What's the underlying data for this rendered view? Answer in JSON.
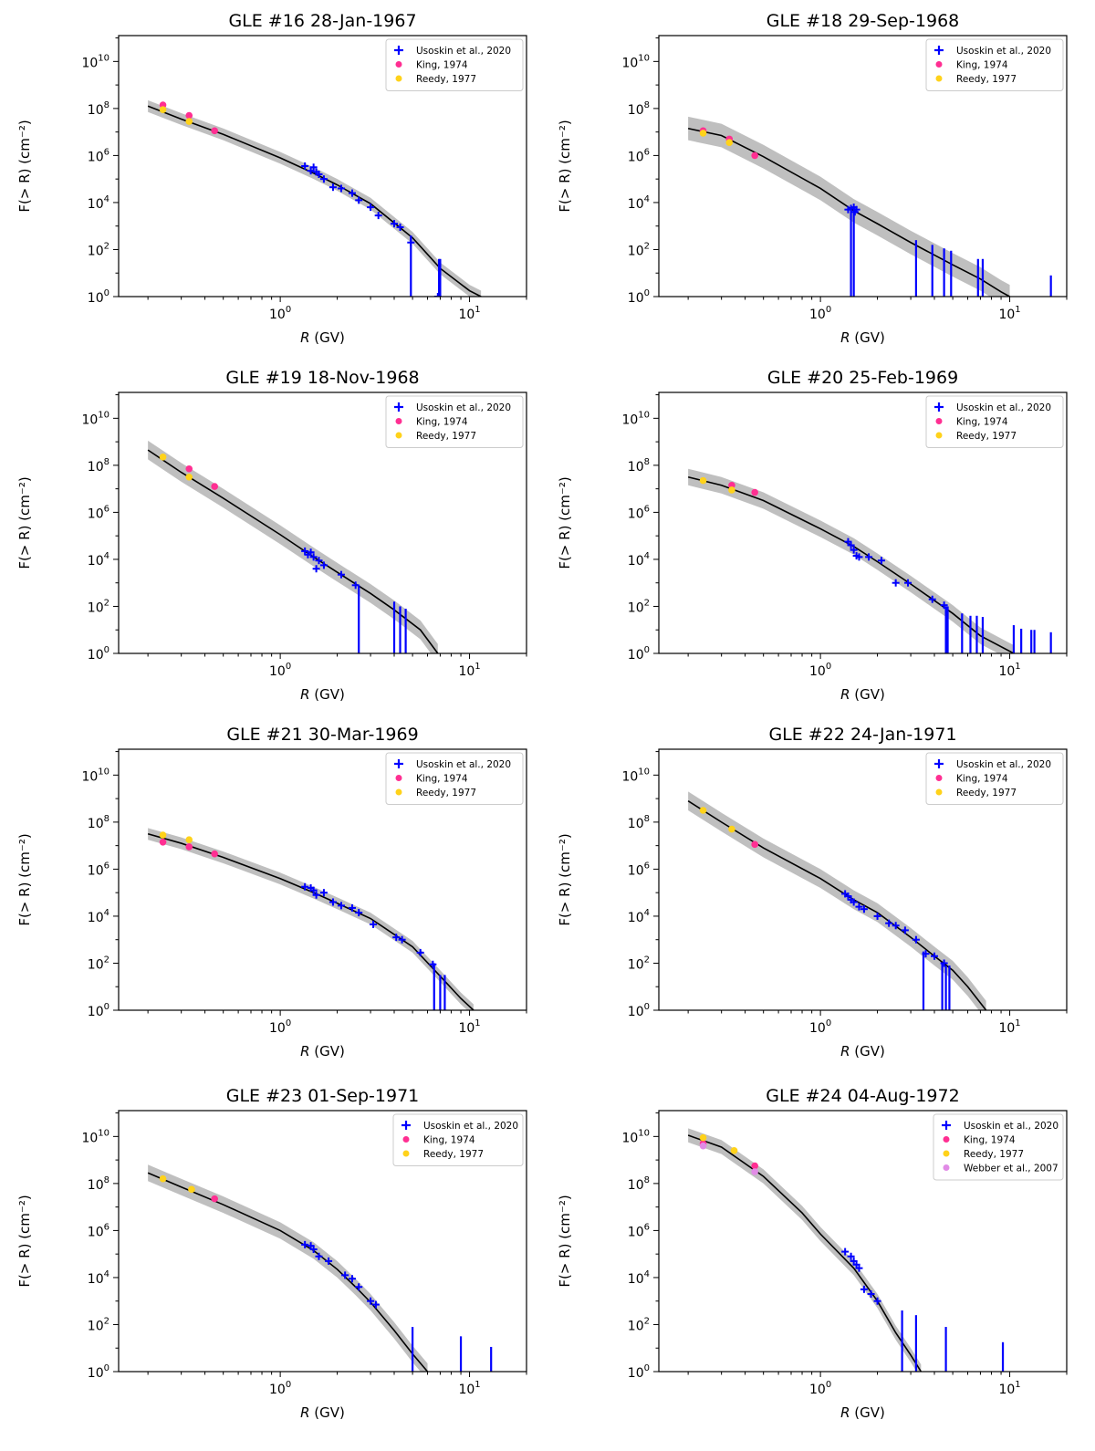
{
  "figure": {
    "xlabel_var": "R",
    "xlabel_unit": "(GV)",
    "ylabel": "F(> R) (cm⁻²)",
    "x_ticks": [
      "10^0",
      "10^1"
    ],
    "y_ticks": [
      "10^0",
      "10^2",
      "10^4",
      "10^6",
      "10^8",
      "10^10"
    ],
    "legend_entries": [
      "Usoskin et al., 2020",
      "King, 1974",
      "Reedy, 1977",
      "Webber et al., 2007"
    ],
    "colors": {
      "usoskin": "#0000ff",
      "king": "#ff2f92",
      "reedy": "#ffd21a",
      "webber": "#e18be6",
      "fit": "#000000",
      "band": "#bfbfbf"
    }
  },
  "chart_data": [
    {
      "type": "scatter",
      "title": "GLE #16   28-Jan-1967",
      "xscale": "log",
      "yscale": "log",
      "xlim": [
        0.14,
        20
      ],
      "ylim_log10": [
        0,
        11.1
      ],
      "fit_log10": [
        [
          0.2,
          8.1
        ],
        [
          0.3,
          7.55
        ],
        [
          0.5,
          6.9
        ],
        [
          1.0,
          5.9
        ],
        [
          1.5,
          5.25
        ],
        [
          2.0,
          4.75
        ],
        [
          3.0,
          3.95
        ],
        [
          5.0,
          2.5
        ],
        [
          7.0,
          1.2
        ],
        [
          10.0,
          0.25
        ],
        [
          11.5,
          0.0
        ]
      ],
      "band_halfwidth_log10": 0.25,
      "king": [
        [
          0.24,
          8.15
        ],
        [
          0.33,
          7.7
        ],
        [
          0.45,
          7.05
        ]
      ],
      "reedy": [
        [
          0.24,
          7.95
        ],
        [
          0.33,
          7.45
        ]
      ],
      "usoskin": [
        [
          1.35,
          5.55
        ],
        [
          1.45,
          5.35
        ],
        [
          1.5,
          5.5
        ],
        [
          1.55,
          5.3
        ],
        [
          1.6,
          5.2
        ],
        [
          1.7,
          5.0
        ],
        [
          1.9,
          4.65
        ],
        [
          2.1,
          4.6
        ],
        [
          2.4,
          4.4
        ],
        [
          2.6,
          4.1
        ],
        [
          3.0,
          3.8
        ],
        [
          3.3,
          3.45
        ],
        [
          4.0,
          3.1
        ],
        [
          4.3,
          2.95
        ],
        [
          4.9,
          2.3
        ],
        [
          6.8,
          0.0
        ]
      ],
      "usoskin_errbar_log10": [
        [
          6.9,
          1.6
        ],
        [
          7.0,
          1.6
        ],
        [
          4.9,
          2.6
        ]
      ],
      "legend": [
        "Usoskin et al., 2020",
        "King, 1974",
        "Reedy, 1977"
      ]
    },
    {
      "type": "scatter",
      "title": "GLE #18   29-Sep-1968",
      "xscale": "log",
      "yscale": "log",
      "xlim": [
        0.14,
        20
      ],
      "ylim_log10": [
        0,
        11.1
      ],
      "fit_log10": [
        [
          0.2,
          7.15
        ],
        [
          0.3,
          6.85
        ],
        [
          0.5,
          5.95
        ],
        [
          1.0,
          4.6
        ],
        [
          1.5,
          3.65
        ],
        [
          2.0,
          3.1
        ],
        [
          3.0,
          2.3
        ],
        [
          5.0,
          1.35
        ],
        [
          7.0,
          0.75
        ],
        [
          9.0,
          0.2
        ],
        [
          10.0,
          0.0
        ]
      ],
      "band_halfwidth_log10": 0.5,
      "king": [
        [
          0.24,
          7.05
        ],
        [
          0.33,
          6.7
        ],
        [
          0.45,
          6.0
        ]
      ],
      "reedy": [
        [
          0.24,
          6.95
        ],
        [
          0.33,
          6.55
        ]
      ],
      "usoskin": [
        [
          1.4,
          3.7
        ],
        [
          1.45,
          3.75
        ],
        [
          1.5,
          3.8
        ],
        [
          1.52,
          3.6
        ],
        [
          1.55,
          3.7
        ]
      ],
      "usoskin_errbar_log10": [
        [
          1.45,
          3.8
        ],
        [
          1.5,
          3.8
        ],
        [
          3.2,
          2.4
        ],
        [
          3.9,
          2.2
        ],
        [
          4.5,
          2.05
        ],
        [
          4.9,
          1.95
        ],
        [
          6.8,
          1.6
        ],
        [
          7.2,
          1.6
        ],
        [
          16.5,
          0.9
        ]
      ],
      "legend": [
        "Usoskin et al., 2020",
        "King, 1974",
        "Reedy, 1977"
      ]
    },
    {
      "type": "scatter",
      "title": "GLE #19   18-Nov-1968",
      "xscale": "log",
      "yscale": "log",
      "xlim": [
        0.14,
        20
      ],
      "ylim_log10": [
        0,
        11.1
      ],
      "fit_log10": [
        [
          0.2,
          8.65
        ],
        [
          0.3,
          7.7
        ],
        [
          0.5,
          6.6
        ],
        [
          1.0,
          5.05
        ],
        [
          1.5,
          4.1
        ],
        [
          2.0,
          3.45
        ],
        [
          3.0,
          2.55
        ],
        [
          4.0,
          1.85
        ],
        [
          5.5,
          1.0
        ],
        [
          6.8,
          0.0
        ]
      ],
      "band_halfwidth_log10": 0.4,
      "king": [
        [
          0.33,
          7.85
        ],
        [
          0.45,
          7.1
        ]
      ],
      "reedy": [
        [
          0.24,
          8.35
        ],
        [
          0.33,
          7.5
        ]
      ],
      "usoskin": [
        [
          1.35,
          4.35
        ],
        [
          1.4,
          4.2
        ],
        [
          1.45,
          4.3
        ],
        [
          1.5,
          4.1
        ],
        [
          1.55,
          3.6
        ],
        [
          1.6,
          3.95
        ],
        [
          1.7,
          3.75
        ],
        [
          2.1,
          3.35
        ],
        [
          2.5,
          2.9
        ]
      ],
      "usoskin_errbar_log10": [
        [
          2.6,
          2.9
        ],
        [
          4.0,
          2.2
        ],
        [
          4.3,
          2.0
        ],
        [
          4.6,
          1.9
        ]
      ],
      "legend": [
        "Usoskin et al., 2020",
        "King, 1974",
        "Reedy, 1977"
      ]
    },
    {
      "type": "scatter",
      "title": "GLE #20   25-Feb-1969",
      "xscale": "log",
      "yscale": "log",
      "xlim": [
        0.14,
        20
      ],
      "ylim_log10": [
        0,
        11.1
      ],
      "fit_log10": [
        [
          0.2,
          7.5
        ],
        [
          0.3,
          7.15
        ],
        [
          0.5,
          6.5
        ],
        [
          1.0,
          5.3
        ],
        [
          1.5,
          4.55
        ],
        [
          2.0,
          3.9
        ],
        [
          3.0,
          2.95
        ],
        [
          5.0,
          1.7
        ],
        [
          7.0,
          0.75
        ],
        [
          10.5,
          0.0
        ]
      ],
      "band_halfwidth_log10": 0.35,
      "king": [
        [
          0.34,
          7.15
        ],
        [
          0.45,
          6.85
        ]
      ],
      "reedy": [
        [
          0.24,
          7.35
        ],
        [
          0.34,
          6.95
        ]
      ],
      "usoskin": [
        [
          1.4,
          4.75
        ],
        [
          1.45,
          4.6
        ],
        [
          1.5,
          4.4
        ],
        [
          1.55,
          4.15
        ],
        [
          1.6,
          4.1
        ],
        [
          1.8,
          4.1
        ],
        [
          2.1,
          3.95
        ],
        [
          2.5,
          3.0
        ],
        [
          2.9,
          3.0
        ],
        [
          3.9,
          2.3
        ],
        [
          4.5,
          2.05
        ]
      ],
      "usoskin_errbar_log10": [
        [
          4.6,
          2.0
        ],
        [
          4.7,
          2.0
        ],
        [
          5.6,
          1.7
        ],
        [
          6.2,
          1.6
        ],
        [
          6.7,
          1.6
        ],
        [
          7.2,
          1.55
        ],
        [
          10.5,
          1.2
        ],
        [
          11.5,
          1.05
        ],
        [
          13.0,
          1.0
        ],
        [
          13.5,
          1.0
        ],
        [
          16.5,
          0.9
        ]
      ],
      "legend": [
        "Usoskin et al., 2020",
        "King, 1974",
        "Reedy, 1977"
      ]
    },
    {
      "type": "scatter",
      "title": "GLE #21   30-Mar-1969",
      "xscale": "log",
      "yscale": "log",
      "xlim": [
        0.14,
        20
      ],
      "ylim_log10": [
        0,
        11.1
      ],
      "fit_log10": [
        [
          0.2,
          7.5
        ],
        [
          0.3,
          7.1
        ],
        [
          0.5,
          6.5
        ],
        [
          1.0,
          5.6
        ],
        [
          1.5,
          5.0
        ],
        [
          2.0,
          4.55
        ],
        [
          3.0,
          3.9
        ],
        [
          5.0,
          2.7
        ],
        [
          7.0,
          1.45
        ],
        [
          9.0,
          0.5
        ],
        [
          10.5,
          0.0
        ]
      ],
      "band_halfwidth_log10": 0.25,
      "king": [
        [
          0.24,
          7.15
        ],
        [
          0.33,
          6.95
        ],
        [
          0.45,
          6.65
        ]
      ],
      "reedy": [
        [
          0.24,
          7.45
        ],
        [
          0.33,
          7.25
        ]
      ],
      "usoskin": [
        [
          1.35,
          5.25
        ],
        [
          1.45,
          5.2
        ],
        [
          1.5,
          5.1
        ],
        [
          1.55,
          4.9
        ],
        [
          1.7,
          5.0
        ],
        [
          1.9,
          4.6
        ],
        [
          2.1,
          4.45
        ],
        [
          2.4,
          4.35
        ],
        [
          2.6,
          4.15
        ],
        [
          3.1,
          3.65
        ],
        [
          4.1,
          3.1
        ],
        [
          4.4,
          3.0
        ],
        [
          5.5,
          2.45
        ],
        [
          6.4,
          1.95
        ]
      ],
      "usoskin_errbar_log10": [
        [
          6.5,
          2.0
        ],
        [
          7.0,
          1.5
        ],
        [
          7.4,
          1.5
        ]
      ],
      "legend": [
        "Usoskin et al., 2020",
        "King, 1974",
        "Reedy, 1977"
      ]
    },
    {
      "type": "scatter",
      "title": "GLE #22   24-Jan-1971",
      "xscale": "log",
      "yscale": "log",
      "xlim": [
        0.14,
        20
      ],
      "ylim_log10": [
        0,
        11.1
      ],
      "fit_log10": [
        [
          0.2,
          8.9
        ],
        [
          0.3,
          8.0
        ],
        [
          0.5,
          6.9
        ],
        [
          1.0,
          5.6
        ],
        [
          1.5,
          4.7
        ],
        [
          2.0,
          4.15
        ],
        [
          3.0,
          3.1
        ],
        [
          4.0,
          2.3
        ],
        [
          5.0,
          1.7
        ],
        [
          6.0,
          1.0
        ],
        [
          7.5,
          0.0
        ]
      ],
      "band_halfwidth_log10": 0.4,
      "king": [
        [
          0.45,
          7.05
        ]
      ],
      "reedy": [
        [
          0.24,
          8.5
        ],
        [
          0.34,
          7.7
        ]
      ],
      "usoskin": [
        [
          1.35,
          4.95
        ],
        [
          1.4,
          4.85
        ],
        [
          1.45,
          4.7
        ],
        [
          1.5,
          4.6
        ],
        [
          1.6,
          4.4
        ],
        [
          1.7,
          4.3
        ],
        [
          2.0,
          4.0
        ],
        [
          2.3,
          3.7
        ],
        [
          2.5,
          3.6
        ],
        [
          2.8,
          3.4
        ],
        [
          3.2,
          3.0
        ],
        [
          3.6,
          2.4
        ],
        [
          4.0,
          2.3
        ],
        [
          4.5,
          2.0
        ]
      ],
      "usoskin_errbar_log10": [
        [
          3.5,
          2.5
        ],
        [
          4.4,
          2.0
        ],
        [
          4.6,
          1.9
        ],
        [
          4.8,
          1.9
        ]
      ],
      "legend": [
        "Usoskin et al., 2020",
        "King, 1974",
        "Reedy, 1977"
      ]
    },
    {
      "type": "scatter",
      "title": "GLE #23   01-Sep-1971",
      "xscale": "log",
      "yscale": "log",
      "xlim": [
        0.14,
        20
      ],
      "ylim_log10": [
        0,
        11.1
      ],
      "fit_log10": [
        [
          0.2,
          8.45
        ],
        [
          0.3,
          7.85
        ],
        [
          0.5,
          7.1
        ],
        [
          1.0,
          6.0
        ],
        [
          1.5,
          5.15
        ],
        [
          2.0,
          4.35
        ],
        [
          2.5,
          3.6
        ],
        [
          3.0,
          2.95
        ],
        [
          4.0,
          1.75
        ],
        [
          5.0,
          0.75
        ],
        [
          6.0,
          0.0
        ]
      ],
      "band_halfwidth_log10": 0.35,
      "king": [
        [
          0.45,
          7.35
        ]
      ],
      "reedy": [
        [
          0.24,
          8.2
        ],
        [
          0.34,
          7.75
        ]
      ],
      "usoskin": [
        [
          1.35,
          5.4
        ],
        [
          1.45,
          5.35
        ],
        [
          1.5,
          5.2
        ],
        [
          1.6,
          4.9
        ],
        [
          1.8,
          4.7
        ],
        [
          2.2,
          4.1
        ],
        [
          2.4,
          3.95
        ],
        [
          2.6,
          3.6
        ],
        [
          3.0,
          3.0
        ],
        [
          3.2,
          2.85
        ]
      ],
      "usoskin_errbar_log10": [
        [
          5.0,
          1.9
        ],
        [
          9.0,
          1.5
        ],
        [
          13.0,
          1.05
        ]
      ],
      "legend": [
        "Usoskin et al., 2020",
        "King, 1974",
        "Reedy, 1977"
      ]
    },
    {
      "type": "scatter",
      "title": "GLE #24   04-Aug-1972",
      "xscale": "log",
      "yscale": "log",
      "xlim": [
        0.14,
        20
      ],
      "ylim_log10": [
        0,
        11.1
      ],
      "fit_log10": [
        [
          0.2,
          10.05
        ],
        [
          0.3,
          9.55
        ],
        [
          0.5,
          8.3
        ],
        [
          0.8,
          6.75
        ],
        [
          1.0,
          5.85
        ],
        [
          1.5,
          4.4
        ],
        [
          2.0,
          3.0
        ],
        [
          2.5,
          1.65
        ],
        [
          3.0,
          0.7
        ],
        [
          3.4,
          0.0
        ]
      ],
      "band_halfwidth_log10": 0.3,
      "king": [
        [
          0.24,
          9.7
        ],
        [
          0.45,
          8.75
        ]
      ],
      "reedy": [
        [
          0.24,
          9.95
        ],
        [
          0.35,
          9.4
        ]
      ],
      "webber": [
        [
          0.24,
          9.6
        ],
        [
          0.45,
          8.5
        ]
      ],
      "usoskin": [
        [
          1.35,
          5.1
        ],
        [
          1.45,
          4.9
        ],
        [
          1.5,
          4.7
        ],
        [
          1.55,
          4.55
        ],
        [
          1.6,
          4.4
        ],
        [
          1.7,
          3.5
        ],
        [
          1.85,
          3.3
        ],
        [
          2.0,
          3.0
        ]
      ],
      "usoskin_errbar_log10": [
        [
          2.7,
          2.6
        ],
        [
          3.2,
          2.4
        ],
        [
          4.6,
          1.9
        ],
        [
          9.2,
          1.25
        ]
      ],
      "legend": [
        "Usoskin et al., 2020",
        "King, 1974",
        "Reedy, 1977",
        "Webber et al., 2007"
      ]
    }
  ]
}
